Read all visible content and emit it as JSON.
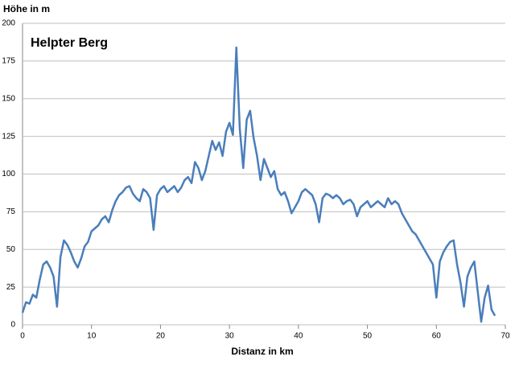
{
  "chart_data": {
    "type": "line",
    "title": "Helpter Berg",
    "x_label": "Distanz in km",
    "y_label": "Höhe in m",
    "x": [
      0,
      0.5,
      1,
      1.5,
      2,
      2.5,
      3,
      3.5,
      4,
      4.5,
      5,
      5.5,
      6,
      6.5,
      7,
      7.5,
      8,
      8.5,
      9,
      9.5,
      10,
      10.5,
      11,
      11.5,
      12,
      12.5,
      13,
      13.5,
      14,
      14.5,
      15,
      15.5,
      16,
      16.5,
      17,
      17.5,
      18,
      18.5,
      19,
      19.5,
      20,
      20.5,
      21,
      21.5,
      22,
      22.5,
      23,
      23.5,
      24,
      24.5,
      25,
      25.5,
      26,
      26.5,
      27,
      27.5,
      28,
      28.5,
      29,
      29.5,
      30,
      30.5,
      31,
      31.5,
      32,
      32.5,
      33,
      33.5,
      34,
      34.5,
      35,
      35.5,
      36,
      36.5,
      37,
      37.5,
      38,
      38.5,
      39,
      39.5,
      40,
      40.5,
      41,
      41.5,
      42,
      42.5,
      43,
      43.5,
      44,
      44.5,
      45,
      45.5,
      46,
      46.5,
      47,
      47.5,
      48,
      48.5,
      49,
      49.5,
      50,
      50.5,
      51,
      51.5,
      52,
      52.5,
      53,
      53.5,
      54,
      54.5,
      55,
      55.5,
      56,
      56.5,
      57,
      57.5,
      58,
      58.5,
      59,
      59.5,
      60,
      60.5,
      61,
      61.5,
      62,
      62.5,
      63,
      63.5,
      64,
      64.5,
      65,
      65.5,
      66,
      66.5,
      67,
      67.5,
      68,
      68.5
    ],
    "values": [
      8,
      15,
      14,
      20,
      18,
      30,
      40,
      42,
      38,
      32,
      12,
      45,
      56,
      53,
      48,
      42,
      38,
      44,
      52,
      55,
      62,
      64,
      66,
      70,
      72,
      68,
      76,
      82,
      86,
      88,
      91,
      92,
      87,
      84,
      82,
      90,
      88,
      84,
      63,
      86,
      90,
      92,
      88,
      90,
      92,
      88,
      91,
      96,
      98,
      94,
      108,
      104,
      96,
      102,
      112,
      122,
      116,
      121,
      112,
      128,
      134,
      126,
      184,
      130,
      104,
      136,
      142,
      124,
      112,
      96,
      110,
      104,
      98,
      102,
      90,
      86,
      88,
      82,
      74,
      78,
      82,
      88,
      90,
      88,
      86,
      80,
      68,
      84,
      87,
      86,
      84,
      86,
      84,
      80,
      82,
      83,
      80,
      72,
      78,
      80,
      82,
      78,
      80,
      82,
      80,
      78,
      84,
      80,
      82,
      80,
      74,
      70,
      66,
      62,
      60,
      56,
      52,
      48,
      44,
      40,
      18,
      42,
      48,
      52,
      55,
      56,
      40,
      28,
      12,
      32,
      38,
      42,
      22,
      2,
      18,
      26,
      10,
      6
    ],
    "color": "#4a7ebb",
    "xlim": [
      0,
      70
    ],
    "xticks": [
      0,
      10,
      20,
      30,
      40,
      50,
      60,
      70
    ],
    "ylim": [
      0,
      200
    ],
    "yticks": [
      0,
      25,
      50,
      75,
      100,
      125,
      150,
      175,
      200
    ],
    "grid": true
  }
}
